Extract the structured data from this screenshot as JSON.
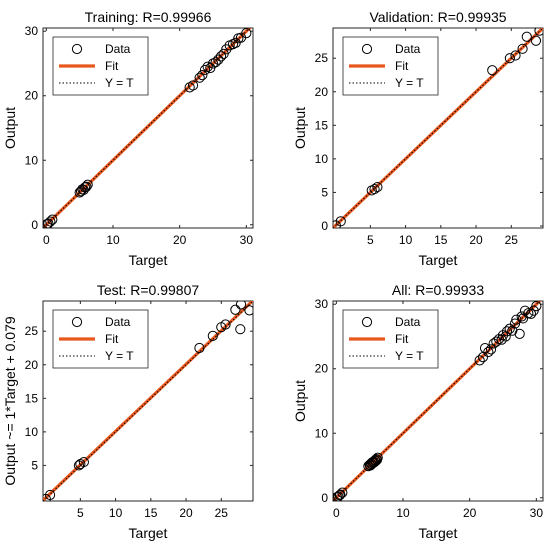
{
  "figure": {
    "background": "#ffffff"
  },
  "colors": {
    "fit": "#e8581c",
    "marker": "#000000",
    "identity": "#000000"
  },
  "chart_data": [
    {
      "type": "scatter",
      "title": "Training: R=0.99966",
      "xlabel": "Target",
      "ylabel": "Output",
      "xlim": [
        -0.5,
        31
      ],
      "ylim": [
        -0.5,
        30.5
      ],
      "xticks": [
        0,
        10,
        20,
        30
      ],
      "yticks": [
        0,
        10,
        20,
        30
      ],
      "legend": {
        "placement": "top-left",
        "entries": [
          "Data",
          "Fit",
          "Y = T"
        ]
      },
      "fit": {
        "slope": 1,
        "intercept": 0
      },
      "series": [
        {
          "name": "Data",
          "marker": "open-circle",
          "points": [
            [
              0.1,
              0.1
            ],
            [
              0.3,
              0.2
            ],
            [
              0.6,
              0.5
            ],
            [
              0.9,
              0.8
            ],
            [
              5.0,
              5.0
            ],
            [
              5.2,
              5.2
            ],
            [
              5.4,
              5.5
            ],
            [
              5.6,
              5.4
            ],
            [
              5.8,
              5.8
            ],
            [
              6.0,
              5.9
            ],
            [
              6.2,
              6.2
            ],
            [
              21.5,
              21.3
            ],
            [
              22.0,
              21.6
            ],
            [
              23.0,
              22.8
            ],
            [
              23.4,
              23.2
            ],
            [
              23.8,
              24.0
            ],
            [
              24.2,
              24.5
            ],
            [
              24.6,
              24.3
            ],
            [
              25.0,
              25.0
            ],
            [
              25.4,
              25.2
            ],
            [
              25.8,
              25.6
            ],
            [
              26.2,
              26.1
            ],
            [
              26.6,
              26.5
            ],
            [
              27.0,
              27.2
            ],
            [
              27.5,
              27.8
            ],
            [
              28.0,
              28.0
            ],
            [
              28.4,
              28.2
            ],
            [
              28.8,
              28.9
            ],
            [
              29.2,
              29.0
            ],
            [
              30.0,
              29.7
            ]
          ]
        }
      ]
    },
    {
      "type": "scatter",
      "title": "Validation: R=0.99935",
      "xlabel": "Target",
      "ylabel": "Output",
      "xlim": [
        -0.3,
        29.5
      ],
      "ylim": [
        -0.3,
        29.5
      ],
      "xticks": [
        5,
        10,
        15,
        20,
        25
      ],
      "yticks": [
        0,
        5,
        10,
        15,
        20,
        25
      ],
      "legend": {
        "placement": "top-left",
        "entries": [
          "Data",
          "Fit",
          "Y = T"
        ]
      },
      "fit": {
        "slope": 1,
        "intercept": 0
      },
      "series": [
        {
          "name": "Data",
          "marker": "open-circle",
          "points": [
            [
              0.1,
              0.1
            ],
            [
              0.8,
              0.7
            ],
            [
              5.2,
              5.3
            ],
            [
              5.6,
              5.5
            ],
            [
              6.0,
              5.8
            ],
            [
              22.3,
              23.2
            ],
            [
              24.8,
              25.0
            ],
            [
              25.6,
              25.4
            ],
            [
              26.6,
              26.4
            ],
            [
              27.2,
              28.2
            ],
            [
              28.5,
              27.6
            ],
            [
              29.0,
              29.1
            ]
          ]
        }
      ]
    },
    {
      "type": "scatter",
      "title": "Test: R=0.99807",
      "xlabel": "Target",
      "ylabel": "Output ~= 1*Target + 0.079",
      "xlim": [
        -0.3,
        29.5
      ],
      "ylim": [
        -0.3,
        29.5
      ],
      "xticks": [
        5,
        10,
        15,
        20,
        25
      ],
      "yticks": [
        5,
        10,
        15,
        20,
        25
      ],
      "legend": {
        "placement": "top-left",
        "entries": [
          "Data",
          "Fit",
          "Y = T"
        ]
      },
      "fit": {
        "slope": 1,
        "intercept": 0.079
      },
      "series": [
        {
          "name": "Data",
          "marker": "open-circle",
          "points": [
            [
              0.1,
              0.0
            ],
            [
              0.7,
              0.6
            ],
            [
              4.8,
              5.0
            ],
            [
              5.0,
              5.2
            ],
            [
              5.5,
              5.5
            ],
            [
              21.9,
              22.5
            ],
            [
              23.8,
              24.3
            ],
            [
              25.0,
              25.6
            ],
            [
              25.6,
              26.0
            ],
            [
              27.0,
              28.2
            ],
            [
              27.7,
              25.3
            ],
            [
              27.8,
              29.0
            ],
            [
              29.0,
              28.1
            ]
          ]
        }
      ]
    },
    {
      "type": "scatter",
      "title": "All: R=0.99933",
      "xlabel": "Target",
      "ylabel": "Output",
      "xlim": [
        -0.5,
        31
      ],
      "ylim": [
        -0.5,
        30.5
      ],
      "xticks": [
        0,
        10,
        20,
        30
      ],
      "yticks": [
        0,
        10,
        20,
        30
      ],
      "legend": {
        "placement": "top-left",
        "entries": [
          "Data",
          "Fit",
          "Y = T"
        ]
      },
      "fit": {
        "slope": 1,
        "intercept": 0
      },
      "series": [
        {
          "name": "Data",
          "marker": "open-circle",
          "points": [
            [
              0.1,
              0.1
            ],
            [
              0.3,
              0.2
            ],
            [
              0.6,
              0.5
            ],
            [
              0.9,
              0.8
            ],
            [
              0.5,
              0.4
            ],
            [
              4.8,
              4.9
            ],
            [
              5.0,
              5.1
            ],
            [
              5.1,
              5.0
            ],
            [
              5.2,
              5.3
            ],
            [
              5.3,
              5.2
            ],
            [
              5.4,
              5.5
            ],
            [
              5.5,
              5.4
            ],
            [
              5.6,
              5.6
            ],
            [
              5.7,
              5.5
            ],
            [
              5.8,
              5.8
            ],
            [
              5.9,
              5.7
            ],
            [
              6.0,
              6.0
            ],
            [
              6.1,
              5.9
            ],
            [
              6.2,
              6.2
            ],
            [
              21.5,
              21.3
            ],
            [
              22.0,
              21.8
            ],
            [
              22.3,
              23.2
            ],
            [
              22.8,
              22.6
            ],
            [
              23.2,
              23.0
            ],
            [
              23.6,
              23.9
            ],
            [
              24.0,
              24.2
            ],
            [
              24.4,
              24.6
            ],
            [
              24.8,
              24.5
            ],
            [
              25.0,
              25.2
            ],
            [
              25.4,
              25.0
            ],
            [
              25.6,
              25.8
            ],
            [
              26.0,
              26.2
            ],
            [
              26.4,
              25.9
            ],
            [
              26.8,
              27.0
            ],
            [
              27.0,
              27.6
            ],
            [
              27.5,
              25.4
            ],
            [
              27.8,
              28.1
            ],
            [
              28.0,
              27.8
            ],
            [
              28.3,
              29.0
            ],
            [
              28.8,
              28.6
            ],
            [
              29.2,
              28.5
            ],
            [
              29.6,
              29.0
            ],
            [
              30.0,
              29.7
            ]
          ]
        }
      ]
    }
  ]
}
